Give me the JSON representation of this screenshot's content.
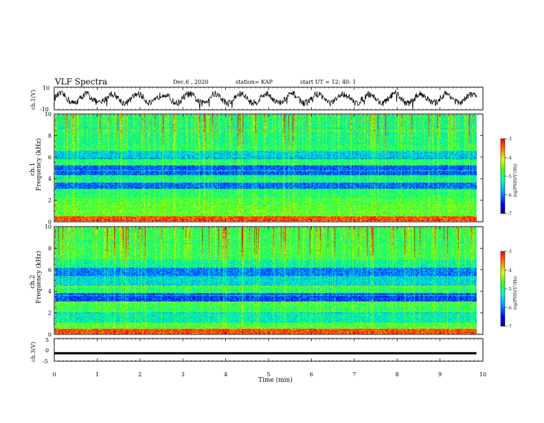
{
  "header": {
    "title": "VLF Spectra",
    "date": "Dec.6 , 2020",
    "station": "station= KAP",
    "start": "start UT = 12: 40: 1"
  },
  "panels": {
    "ch1_voltage_label": "ch.1(V)",
    "ch1_spec_label_a": "ch.1",
    "ch2_spec_label_a": "ch.2",
    "freq_label": "Frequency (kHz)",
    "ch3_voltage_label": "ch.3(V)",
    "time_label": "Time (min)",
    "colorbar_label": "log(PSD)(V²/Hz)"
  },
  "chart_data": [
    {
      "type": "line",
      "name": "ch1_waveform",
      "ylabel": "ch.1(V)",
      "ylim": [
        -10,
        10
      ],
      "yticks": [
        "10",
        "-10"
      ],
      "xlim": [
        0,
        10
      ],
      "x_duration_min": 9.85,
      "base_level": 0,
      "oscillation_amplitude": 4,
      "oscillation_period_min": 0.6
    },
    {
      "type": "heatmap",
      "name": "ch1_spectrogram",
      "ylabel": "Frequency (kHz)",
      "ylim": [
        0,
        10
      ],
      "yticks": [
        "0",
        "2",
        "4",
        "6",
        "8",
        "10"
      ],
      "xlim": [
        0,
        10
      ],
      "x_duration_min": 9.85,
      "colorbar": {
        "range": [
          -7,
          -3
        ],
        "ticks": [
          "-3",
          "-4",
          "-5",
          "-6",
          "-7"
        ]
      },
      "bands": [
        {
          "from": 0.0,
          "to": 0.4,
          "level": -3.4
        },
        {
          "from": 0.4,
          "to": 1.2,
          "level": -4.7
        },
        {
          "from": 1.2,
          "to": 2.2,
          "level": -4.8
        },
        {
          "from": 2.2,
          "to": 3.0,
          "level": -5.0
        },
        {
          "from": 3.0,
          "to": 3.6,
          "level": -6.1
        },
        {
          "from": 3.6,
          "to": 4.3,
          "level": -5.2
        },
        {
          "from": 4.3,
          "to": 5.2,
          "level": -6.2
        },
        {
          "from": 5.2,
          "to": 5.8,
          "level": -5.0
        },
        {
          "from": 5.8,
          "to": 6.6,
          "level": -5.6
        },
        {
          "from": 6.6,
          "to": 7.2,
          "level": -5.0
        },
        {
          "from": 7.2,
          "to": 10.0,
          "level": -5.1
        }
      ]
    },
    {
      "type": "heatmap",
      "name": "ch2_spectrogram",
      "ylabel": "Frequency (kHz)",
      "ylim": [
        0,
        10
      ],
      "yticks": [
        "0",
        "2",
        "4",
        "6",
        "8",
        "10"
      ],
      "xlim": [
        0,
        10
      ],
      "x_duration_min": 9.85,
      "colorbar": {
        "range": [
          -7,
          -3
        ],
        "ticks": [
          "-3",
          "-4",
          "-5",
          "-6",
          "-7"
        ]
      },
      "bands": [
        {
          "from": 0.0,
          "to": 0.4,
          "level": -3.4
        },
        {
          "from": 0.4,
          "to": 1.0,
          "level": -4.8
        },
        {
          "from": 1.0,
          "to": 2.0,
          "level": -5.3
        },
        {
          "from": 2.0,
          "to": 3.0,
          "level": -4.9
        },
        {
          "from": 3.0,
          "to": 3.8,
          "level": -6.3
        },
        {
          "from": 3.8,
          "to": 4.5,
          "level": -5.0
        },
        {
          "from": 4.5,
          "to": 5.4,
          "level": -5.5
        },
        {
          "from": 5.4,
          "to": 6.2,
          "level": -6.0
        },
        {
          "from": 6.2,
          "to": 7.0,
          "level": -5.2
        },
        {
          "from": 7.0,
          "to": 10.0,
          "level": -4.9
        }
      ]
    },
    {
      "type": "line",
      "name": "ch3_waveform",
      "ylabel": "ch.3(V)",
      "ylim": [
        -5,
        5
      ],
      "yticks": [
        "5",
        "0",
        "-5"
      ],
      "xlim": [
        0,
        10
      ],
      "x_duration_min": 9.85,
      "band_center": -1.5,
      "band_width": 1
    },
    {
      "type": "axis",
      "name": "time_axis",
      "xlabel": "Time (min)",
      "xticks": [
        "0",
        "1",
        "2",
        "3",
        "4",
        "5",
        "6",
        "7",
        "8",
        "9",
        "10"
      ]
    }
  ]
}
